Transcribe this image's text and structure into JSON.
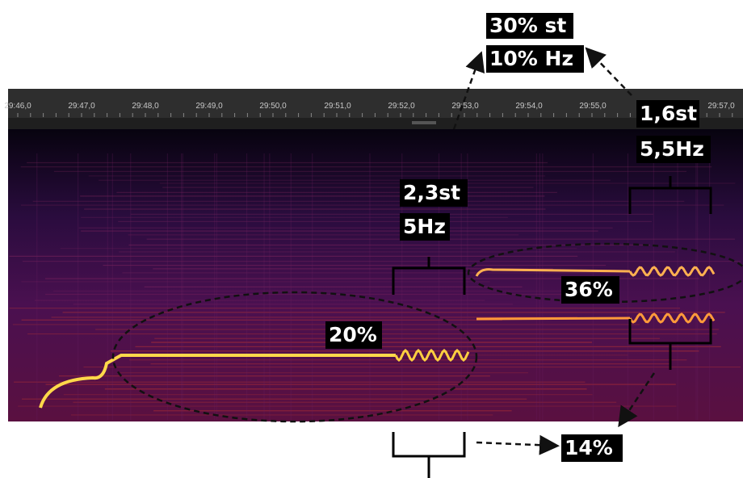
{
  "timeline": {
    "labels": [
      "29:46,0",
      "29:47,0",
      "29:48,0",
      "29:49,0",
      "29:50,0",
      "29:51,0",
      "29:52,0",
      "29:53,0",
      "29:54,0",
      "29:55,0",
      "29:57,0"
    ]
  },
  "annotations": {
    "top_st": "30% st",
    "top_hz": "10% Hz",
    "right_st": "1,6st",
    "right_hz": "5,5Hz",
    "mid_st": "2,3st",
    "mid_hz": "5Hz",
    "left_oval": "20%",
    "right_oval": "36%",
    "bottom": "14%"
  }
}
